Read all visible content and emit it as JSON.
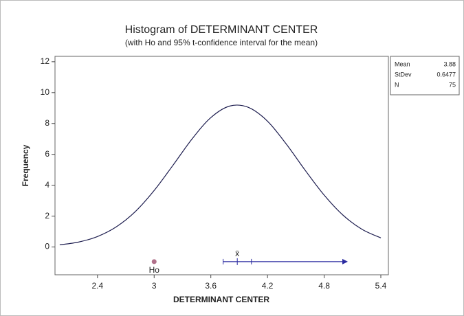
{
  "chart_data": {
    "type": "line",
    "title": "Histogram of DETERMINANT CENTER",
    "subtitle": "(with Ho and 95% t-confidence interval for the mean)",
    "x_label": "DETERMINANT CENTER",
    "y_label": "Frequency",
    "x": [
      2.0,
      2.2,
      2.4,
      2.6,
      2.8,
      3.0,
      3.2,
      3.4,
      3.6,
      3.8,
      4.0,
      4.2,
      4.4,
      4.6,
      4.8,
      5.0,
      5.2,
      5.4
    ],
    "values": [
      0.14,
      0.32,
      0.68,
      1.31,
      2.29,
      3.66,
      5.3,
      6.99,
      8.38,
      9.13,
      9.04,
      8.15,
      6.66,
      4.96,
      3.36,
      2.06,
      1.15,
      0.59
    ],
    "color": "#1c1c4e",
    "xlim": [
      1.95,
      5.48
    ],
    "ylim": [
      -1.8,
      12.35
    ],
    "xticks": [
      2.4,
      3.0,
      3.6,
      4.2,
      4.8,
      5.4
    ],
    "yticks": [
      0,
      2,
      4,
      6,
      8,
      10,
      12
    ],
    "h0": {
      "label": "Ho",
      "x": 3.0,
      "y": -0.95,
      "color": "#b0708a"
    },
    "interval": {
      "label": "x̄",
      "mean": 3.88,
      "low": 3.73,
      "high": 4.03,
      "y": -0.95,
      "color": "#2a2aa0"
    },
    "stats": [
      {
        "label": "Mean",
        "value": 3.88
      },
      {
        "label": "StDev",
        "value": 0.6477
      },
      {
        "label": "N",
        "value": 75
      }
    ]
  }
}
